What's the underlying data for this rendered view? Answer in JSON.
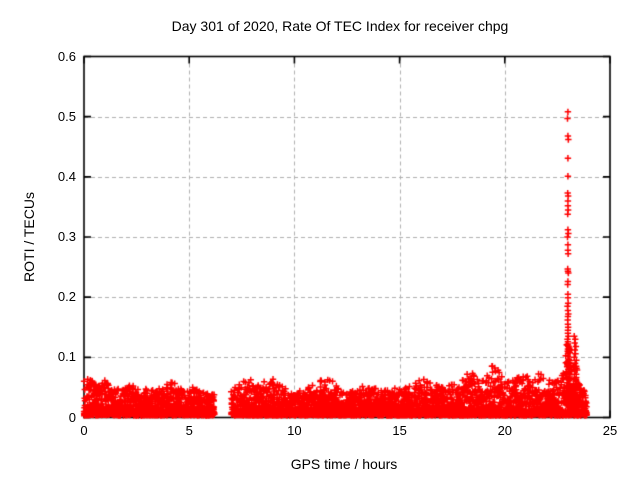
{
  "chart_data": {
    "type": "scatter",
    "title": "Day 301 of 2020, Rate Of TEC Index for receiver chpg",
    "xlabel": "GPS time / hours",
    "ylabel": "ROTI / TECUs",
    "xlim": [
      0,
      25
    ],
    "ylim": [
      0,
      0.6
    ],
    "xticks": {
      "values": [
        0,
        5,
        10,
        15,
        20,
        25
      ],
      "labels": [
        "0",
        "5",
        "10",
        "15",
        "20",
        "25"
      ]
    },
    "yticks": {
      "values": [
        0,
        0.1,
        0.2,
        0.3,
        0.4,
        0.5,
        0.6
      ],
      "labels": [
        "0",
        "0.1",
        "0.2",
        "0.3",
        "0.4",
        "0.5",
        "0.6"
      ]
    },
    "grid": true,
    "grid_style": "dashed",
    "grid_color": "#b0b0b0",
    "legend": "none",
    "marker": {
      "shape": "plus",
      "color": "#ff0000",
      "size": 7
    },
    "series_name": "ROTI",
    "band": {
      "comment": "dense noise band of ROTI values; segments are [startHour,endHour] with a data gap 6.2-7.0h",
      "segments": [
        [
          0.0,
          6.2
        ],
        [
          7.0,
          23.9
        ]
      ],
      "floor": 0.003,
      "points_per_step": 2,
      "step_hours": 0.009,
      "envelope": [
        [
          0.0,
          0.058
        ],
        [
          0.3,
          0.062
        ],
        [
          0.7,
          0.055
        ],
        [
          1.0,
          0.065
        ],
        [
          1.3,
          0.05
        ],
        [
          1.8,
          0.048
        ],
        [
          2.2,
          0.052
        ],
        [
          2.6,
          0.045
        ],
        [
          3.0,
          0.048
        ],
        [
          3.4,
          0.044
        ],
        [
          3.8,
          0.05
        ],
        [
          4.1,
          0.062
        ],
        [
          4.4,
          0.055
        ],
        [
          4.8,
          0.045
        ],
        [
          5.2,
          0.048
        ],
        [
          5.6,
          0.044
        ],
        [
          6.0,
          0.04
        ],
        [
          6.2,
          0.038
        ],
        [
          7.0,
          0.042
        ],
        [
          7.4,
          0.055
        ],
        [
          7.8,
          0.065
        ],
        [
          8.2,
          0.05
        ],
        [
          8.6,
          0.062
        ],
        [
          9.0,
          0.066
        ],
        [
          9.4,
          0.05
        ],
        [
          9.8,
          0.042
        ],
        [
          10.2,
          0.04
        ],
        [
          10.6,
          0.046
        ],
        [
          11.0,
          0.055
        ],
        [
          11.4,
          0.065
        ],
        [
          11.8,
          0.06
        ],
        [
          12.2,
          0.05
        ],
        [
          12.6,
          0.04
        ],
        [
          13.0,
          0.046
        ],
        [
          13.4,
          0.05
        ],
        [
          13.8,
          0.046
        ],
        [
          14.2,
          0.042
        ],
        [
          14.6,
          0.05
        ],
        [
          15.0,
          0.044
        ],
        [
          15.4,
          0.048
        ],
        [
          15.8,
          0.062
        ],
        [
          16.2,
          0.064
        ],
        [
          16.6,
          0.055
        ],
        [
          17.0,
          0.048
        ],
        [
          17.4,
          0.055
        ],
        [
          17.8,
          0.05
        ],
        [
          18.2,
          0.072
        ],
        [
          18.4,
          0.078
        ],
        [
          18.7,
          0.06
        ],
        [
          19.0,
          0.062
        ],
        [
          19.4,
          0.085
        ],
        [
          19.7,
          0.078
        ],
        [
          20.0,
          0.062
        ],
        [
          20.4,
          0.06
        ],
        [
          20.8,
          0.072
        ],
        [
          21.2,
          0.065
        ],
        [
          21.5,
          0.075
        ],
        [
          21.8,
          0.07
        ],
        [
          22.2,
          0.06
        ],
        [
          22.6,
          0.062
        ],
        [
          22.9,
          0.078
        ],
        [
          23.1,
          0.078
        ],
        [
          23.3,
          0.068
        ],
        [
          23.6,
          0.05
        ],
        [
          23.9,
          0.042
        ]
      ]
    },
    "clusters": [
      {
        "hour": 23.0,
        "spread": 0.22,
        "n": 90,
        "min": 0.02,
        "max": 0.125,
        "pow": 2.0
      },
      {
        "hour": 23.35,
        "spread": 0.18,
        "n": 55,
        "min": 0.02,
        "max": 0.09,
        "pow": 2.0
      }
    ],
    "spike_points": [
      [
        23.0,
        0.508
      ],
      [
        22.98,
        0.497
      ],
      [
        23.0,
        0.468
      ],
      [
        23.02,
        0.462
      ],
      [
        23.0,
        0.431
      ],
      [
        23.0,
        0.401
      ],
      [
        22.99,
        0.373
      ],
      [
        23.01,
        0.368
      ],
      [
        23.0,
        0.36
      ],
      [
        23.0,
        0.352
      ],
      [
        23.01,
        0.345
      ],
      [
        22.99,
        0.338
      ],
      [
        23.0,
        0.312
      ],
      [
        23.02,
        0.306
      ],
      [
        22.98,
        0.3
      ],
      [
        23.0,
        0.287
      ],
      [
        23.0,
        0.278
      ],
      [
        23.01,
        0.272
      ],
      [
        22.99,
        0.247
      ],
      [
        23.0,
        0.243
      ],
      [
        23.02,
        0.24
      ],
      [
        23.0,
        0.226
      ],
      [
        22.99,
        0.221
      ],
      [
        23.0,
        0.205
      ],
      [
        23.0,
        0.199
      ],
      [
        23.01,
        0.19
      ],
      [
        22.98,
        0.185
      ],
      [
        23.0,
        0.178
      ],
      [
        23.02,
        0.172
      ],
      [
        23.0,
        0.168
      ],
      [
        22.99,
        0.162
      ],
      [
        23.0,
        0.155
      ],
      [
        23.01,
        0.15
      ],
      [
        23.0,
        0.145
      ],
      [
        23.0,
        0.14
      ],
      [
        23.02,
        0.135
      ],
      [
        22.98,
        0.13
      ],
      [
        23.0,
        0.126
      ],
      [
        23.0,
        0.122
      ],
      [
        23.01,
        0.118
      ],
      [
        23.0,
        0.114
      ],
      [
        22.99,
        0.11
      ],
      [
        23.0,
        0.106
      ],
      [
        23.0,
        0.102
      ],
      [
        23.3,
        0.135
      ],
      [
        23.35,
        0.13
      ],
      [
        23.32,
        0.124
      ],
      [
        23.38,
        0.118
      ],
      [
        23.33,
        0.112
      ],
      [
        23.36,
        0.106
      ],
      [
        23.3,
        0.1
      ],
      [
        23.4,
        0.095
      ],
      [
        23.34,
        0.09
      ],
      [
        23.37,
        0.085
      ],
      [
        23.31,
        0.08
      ]
    ],
    "colors": {
      "marker": "#ff0000",
      "grid": "#b0b0b0",
      "axis": "#000000",
      "background": "#ffffff"
    }
  }
}
